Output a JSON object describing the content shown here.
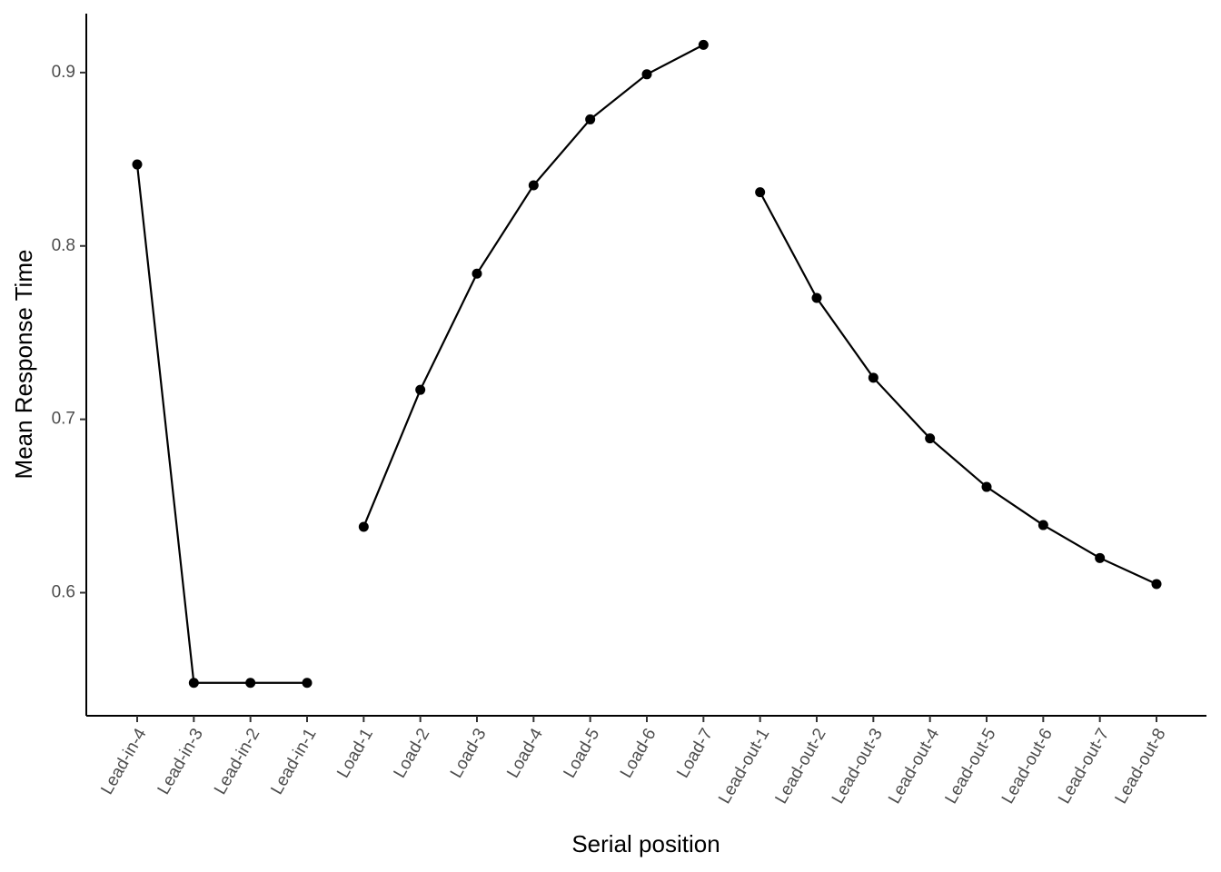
{
  "chart_data": {
    "type": "line",
    "xlabel": "Serial position",
    "ylabel": "Mean Response Time",
    "categories": [
      "Lead-in-4",
      "Lead-in-3",
      "Lead-in-2",
      "Lead-in-1",
      "Load-1",
      "Load-2",
      "Load-3",
      "Load-4",
      "Load-5",
      "Load-6",
      "Load-7",
      "Lead-out-1",
      "Lead-out-2",
      "Lead-out-3",
      "Lead-out-4",
      "Lead-out-5",
      "Lead-out-6",
      "Lead-out-7",
      "Lead-out-8"
    ],
    "series": [
      {
        "color": "#000000",
        "values": [
          0.847,
          0.548,
          0.548,
          0.548,
          null,
          null,
          null,
          null,
          null,
          null,
          null,
          null,
          null,
          null,
          null,
          null,
          null,
          null,
          null
        ]
      },
      {
        "color": "#000000",
        "values": [
          null,
          null,
          null,
          null,
          0.638,
          0.717,
          0.784,
          0.835,
          0.873,
          0.899,
          0.916,
          null,
          null,
          null,
          null,
          null,
          null,
          null,
          null
        ]
      },
      {
        "color": "#000000",
        "values": [
          null,
          null,
          null,
          null,
          null,
          null,
          null,
          null,
          null,
          null,
          null,
          0.831,
          0.77,
          0.724,
          0.689,
          0.661,
          0.639,
          0.62,
          0.605
        ]
      }
    ],
    "ylim": [
      0.529,
      0.934
    ],
    "yticks": [
      0.6,
      0.7,
      0.8,
      0.9
    ],
    "grid": false
  }
}
